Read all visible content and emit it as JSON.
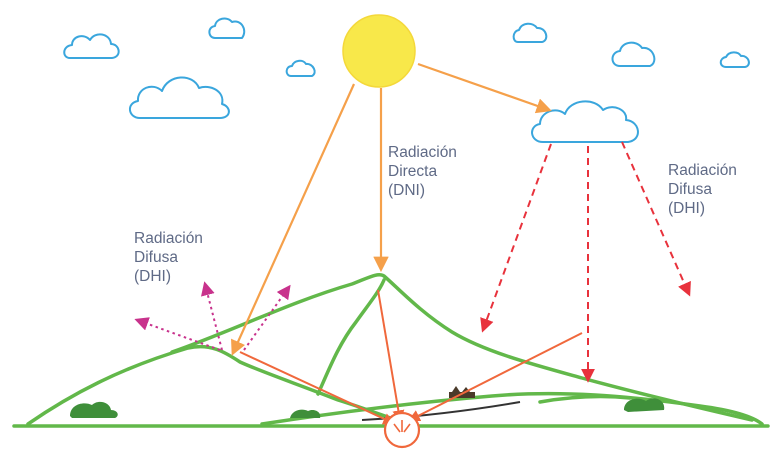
{
  "labels": {
    "direct": [
      "Radiación",
      "Directa",
      "(DNI)"
    ],
    "diffuse_left": [
      "Radiación",
      "Difusa",
      "(DHI)"
    ],
    "diffuse_right": [
      "Radiación",
      "Difusa",
      "(DHI)"
    ]
  },
  "colors": {
    "sun": "#f8e84a",
    "cloud_stroke": "#3aa6dd",
    "direct_ray": "#f5a04a",
    "diffuse_ray": "#e8323c",
    "ground_reflection": "#f0683c",
    "albedo_dotted": "#c8328c",
    "mountain": "#62b84a",
    "bush": "#3f8f3a",
    "label_text": "#5f6a86"
  },
  "icons": {
    "sun": "sun-icon",
    "cloud": "cloud-icon",
    "sensor": "sensor-icon",
    "house": "house-icon"
  }
}
